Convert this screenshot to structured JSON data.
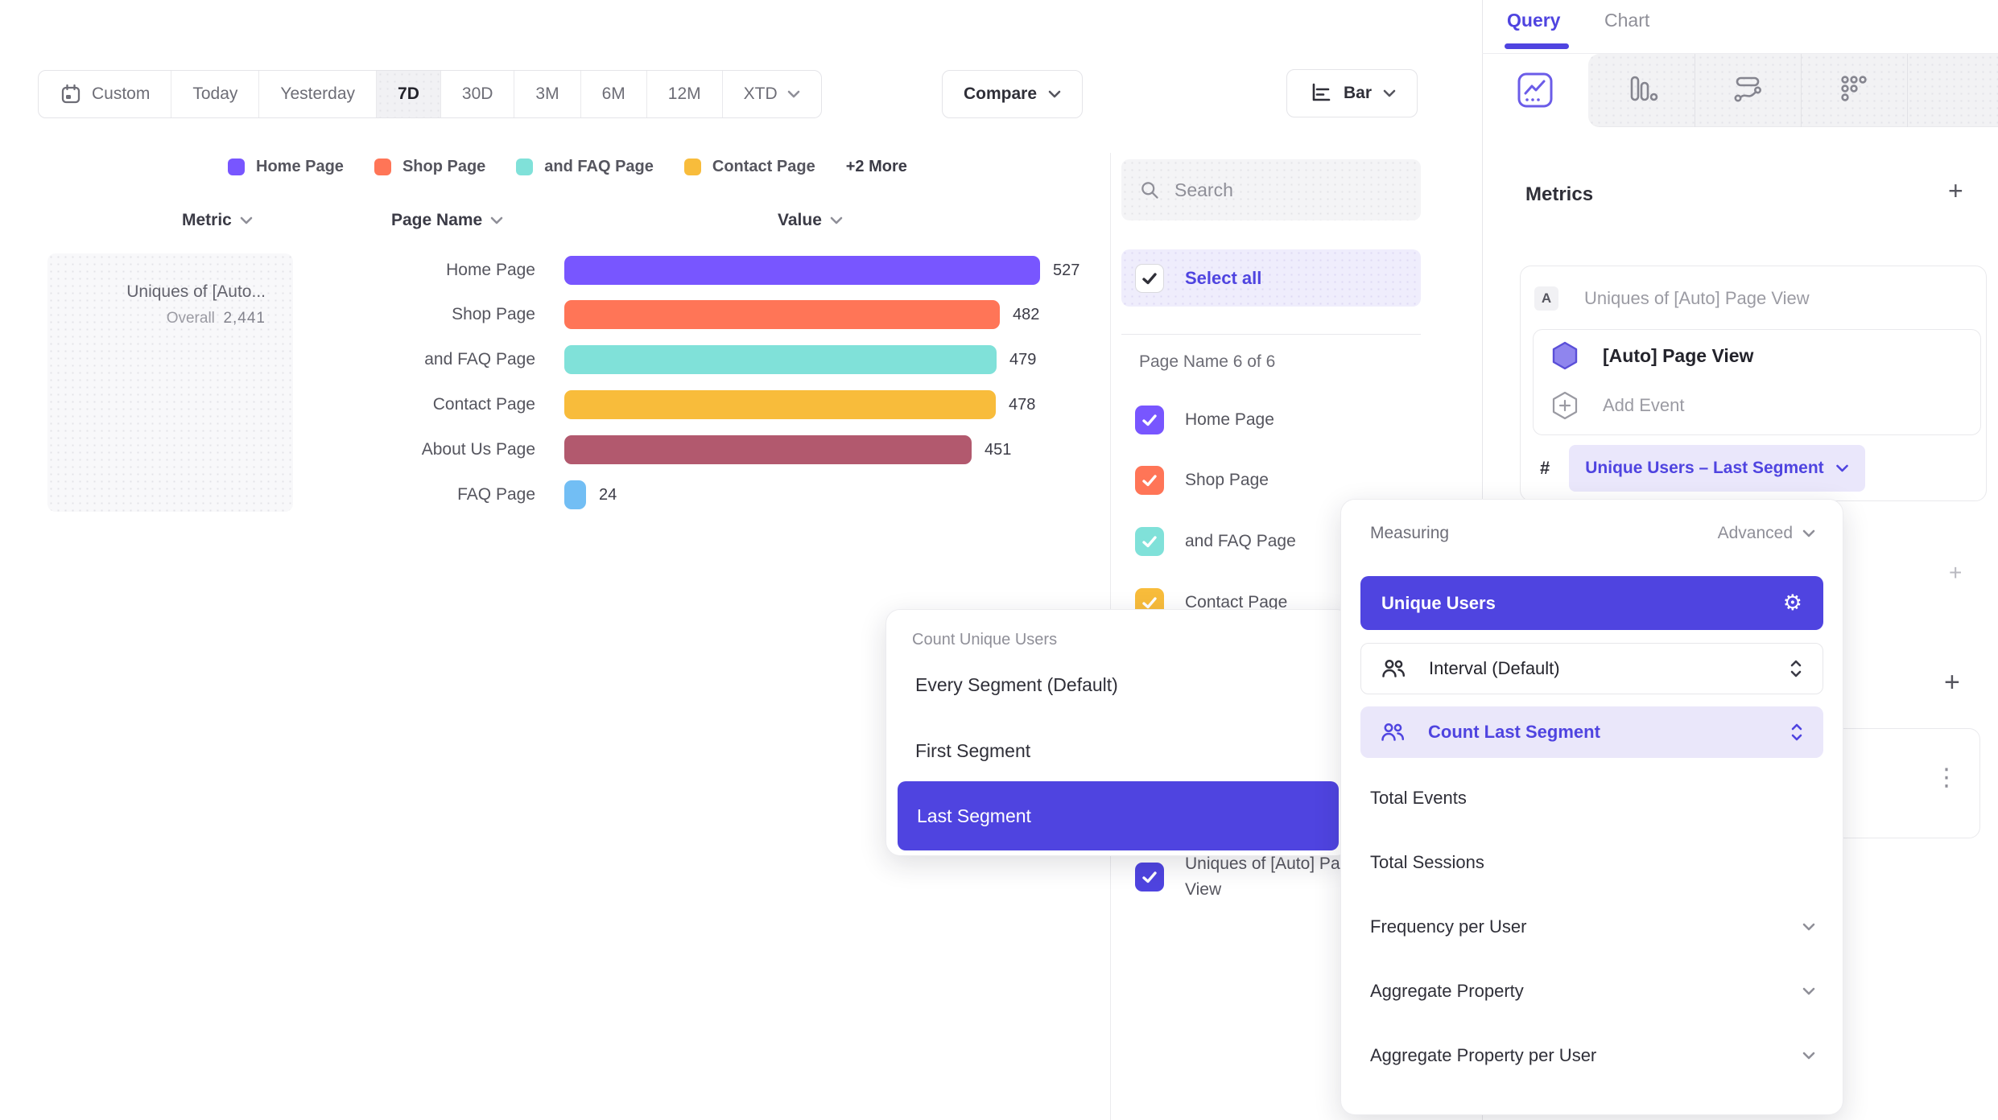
{
  "toolbar": {
    "date_ranges": [
      {
        "label": "Custom",
        "selected": false
      },
      {
        "label": "Today",
        "selected": false
      },
      {
        "label": "Yesterday",
        "selected": false
      },
      {
        "label": "7D",
        "selected": true
      },
      {
        "label": "30D",
        "selected": false
      },
      {
        "label": "3M",
        "selected": false
      },
      {
        "label": "6M",
        "selected": false
      },
      {
        "label": "12M",
        "selected": false
      },
      {
        "label": "XTD",
        "selected": false
      }
    ],
    "compare_label": "Compare",
    "chart_type_label": "Bar"
  },
  "legend": {
    "items": [
      {
        "label": "Home Page",
        "color": "#7856FF"
      },
      {
        "label": "Shop Page",
        "color": "#FF7557"
      },
      {
        "label": "and FAQ Page",
        "color": "#80E1D9"
      },
      {
        "label": "Contact Page",
        "color": "#F8BC3B"
      }
    ],
    "more_label": "+2 More"
  },
  "table": {
    "headers": {
      "metric": "Metric",
      "page_name": "Page Name",
      "value": "Value"
    },
    "metric_cell": {
      "title": "Uniques of [Auto...",
      "overall_label": "Overall",
      "overall_value": "2,441"
    },
    "rows": [
      {
        "page": "Home Page",
        "value": 527,
        "value_label": "527",
        "color": "#7856FF"
      },
      {
        "page": "Shop Page",
        "value": 482,
        "value_label": "482",
        "color": "#FF7557"
      },
      {
        "page": "and FAQ Page",
        "value": 479,
        "value_label": "479",
        "color": "#80E1D9"
      },
      {
        "page": "Contact Page",
        "value": 478,
        "value_label": "478",
        "color": "#F8BC3B"
      },
      {
        "page": "About Us Page",
        "value": 451,
        "value_label": "451",
        "color": "#B2596E"
      },
      {
        "page": "FAQ Page",
        "value": 24,
        "value_label": "24",
        "color": "#72BEF4"
      }
    ]
  },
  "chart_data": {
    "type": "bar",
    "orientation": "horizontal",
    "categories": [
      "Home Page",
      "Shop Page",
      "and FAQ Page",
      "Contact Page",
      "About Us Page",
      "FAQ Page"
    ],
    "values": [
      527,
      482,
      479,
      478,
      451,
      24
    ],
    "colors": [
      "#7856FF",
      "#FF7557",
      "#80E1D9",
      "#F8BC3B",
      "#B2596E",
      "#72BEF4"
    ],
    "series_name": "Uniques of [Auto] Page View",
    "overall_total": 2441,
    "legend_entries": [
      "Home Page",
      "Shop Page",
      "and FAQ Page",
      "Contact Page",
      "+2 More"
    ],
    "title": ""
  },
  "filter_panel": {
    "search_placeholder": "Search",
    "select_all_label": "Select all",
    "group_label": "Page Name 6 of 6",
    "items": [
      {
        "label": "Home Page",
        "color": "#7856FF",
        "checked": true
      },
      {
        "label": "Shop Page",
        "color": "#FF7557",
        "checked": true
      },
      {
        "label": "and FAQ Page",
        "color": "#80E1D9",
        "checked": true
      },
      {
        "label": "Contact Page",
        "color": "#F8BC3B",
        "checked": true
      },
      {
        "label": "Uniques of [Auto] Page View",
        "color": "#4F44E0",
        "checked": true
      }
    ]
  },
  "count_popup": {
    "title": "Count Unique Users",
    "options": [
      {
        "label": "Every Segment (Default)",
        "selected": false
      },
      {
        "label": "First Segment",
        "selected": false
      },
      {
        "label": "Last Segment",
        "selected": true
      }
    ]
  },
  "sidebar": {
    "tabs": [
      {
        "label": "Query",
        "active": true
      },
      {
        "label": "Chart",
        "active": false
      }
    ],
    "metrics_title": "Metrics",
    "metric_card": {
      "badge": "A",
      "title": "Uniques of [Auto] Page View",
      "event_label": "[Auto] Page View",
      "add_event_label": "Add Event",
      "hash": "#",
      "measurement_chip": "Unique Users – Last Segment"
    }
  },
  "measuring_popup": {
    "title": "Measuring",
    "advanced_label": "Advanced",
    "selected_option": "Unique Users",
    "param_rows": [
      {
        "label": "Interval (Default)",
        "highlighted": false
      },
      {
        "label": "Count Last Segment",
        "highlighted": true
      }
    ],
    "options": [
      {
        "label": "Total Events",
        "expandable": false
      },
      {
        "label": "Total Sessions",
        "expandable": false
      },
      {
        "label": "Frequency per User",
        "expandable": true
      },
      {
        "label": "Aggregate Property",
        "expandable": true
      },
      {
        "label": "Aggregate Property per User",
        "expandable": true
      }
    ]
  },
  "icons": {
    "gear": "⚙",
    "kebab": "⋮",
    "plus": "+"
  },
  "colors": {
    "accent": "#4F44E0",
    "accent_light_bg": "#EAE7FB",
    "text_dark": "#2F2F38",
    "text_gray": "#8F8F98"
  }
}
